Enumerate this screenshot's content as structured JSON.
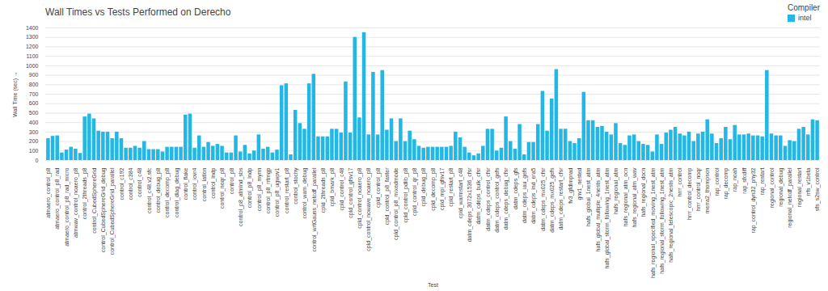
{
  "chart_data": {
    "type": "bar",
    "title": "Wall Times vs Tests Performed on Derecho",
    "x_label": "Test",
    "y_label": "Wall Time (sec)",
    "legend_title": "Compiler",
    "legend": "top-right",
    "grid": true,
    "ylim": [
      0,
      1400
    ],
    "yticks": [
      0,
      100,
      200,
      300,
      400,
      500,
      600,
      700,
      800,
      900,
      1000,
      1100,
      1200,
      1300,
      1400
    ],
    "categories": [
      "atmaero_control_p8",
      null,
      "atmaero_control_p8_rad",
      null,
      "atmaero_control_p8_rad_micro",
      null,
      "atmwav_control_noaero_p8",
      null,
      "control_2threads_p8",
      null,
      "control_CubedSphereGrid",
      null,
      "control_CubedSphereGrid_debug",
      null,
      "control_CubedSphereGrid_parallel",
      null,
      "control_c192",
      null,
      "control_c384",
      null,
      "control_c48",
      null,
      "control_c48.v2.sfc",
      null,
      "control_debug_p8",
      null,
      "control_decomp_p8",
      null,
      "control_diag_debug",
      null,
      "control_flake",
      null,
      "control_iovr4",
      null,
      "control_latlon",
      null,
      "control_lndp",
      null,
      "control_noqr_p8",
      null,
      "control_p8",
      null,
      "control_p8_atmlnd_sbs",
      null,
      "control_p8_lndp",
      null,
      "control_p8_mynn",
      null,
      "control_p8_rrtmgp",
      null,
      "control_p8_ugwpv1",
      null,
      "control_restart_p8",
      null,
      "control_stochy",
      null,
      "control_wam_debug",
      null,
      "control_wrtGauss_netcdf_parallel",
      null,
      "cpld_2threads_p8",
      null,
      "cpld_bmark_p8",
      null,
      "cpld_control_c48",
      null,
      "cpld_control_gfsv17",
      null,
      "cpld_control_noaero_p8",
      null,
      "cpld_control_nowave_noaero_p8",
      null,
      "cpld_control_p8",
      null,
      "cpld_control_p8_faster",
      null,
      "cpld_control_p8_mixedmode",
      null,
      "cpld_control_pdlib_p8",
      null,
      "cpld_control_qr_p8",
      null,
      "cpld_debug_p8",
      null,
      "cpld_decomp_p8",
      null,
      "cpld_mpi_gfsv17",
      null,
      "cpld_restart_p8",
      null,
      "cpld_warmstart_c48",
      null,
      "datm_cdeps_3072x1536_cfsr",
      null,
      "datm_cdeps_bulk_cfsr",
      null,
      "datm_cdeps_control_cfsr",
      null,
      "datm_cdeps_control_gefs",
      null,
      "datm_cdeps_debug_cfsr",
      null,
      "datm_cdeps_gfs",
      null,
      "datm_cdeps_iau_gefs",
      null,
      "datm_cdeps_lnd_era5",
      null,
      "datm_cdeps_mx025_cfsr",
      null,
      "datm_cdeps_mx025_gefs",
      null,
      "datm_cdeps_restart_cfsr",
      null,
      "fv3_gfdlmprad",
      null,
      "gnv1_nested",
      null,
      "hafs_global_1nest_atm",
      null,
      "hafs_global_multiple_4nests_atm",
      null,
      "hafs_global_storm_following_1nest_atm",
      null,
      "hafs_regional_atm",
      null,
      "hafs_regional_atm_ocn",
      null,
      "hafs_regional_atm_wav",
      null,
      "hafs_regional_docn",
      null,
      "hafs_regional_specified_moving_1nest_atm",
      null,
      "hafs_regional_storm_following_1nest_atm",
      null,
      "hafs_regional_telescopic_2nests_atm",
      null,
      "hrrr_control",
      null,
      "hrrr_control_decomp",
      null,
      "hrrr_control_noqr",
      null,
      "merra2_thompson",
      null,
      "rap_control",
      null,
      "rap_decomp",
      null,
      "rap_noah",
      null,
      "rap_sfcdiff",
      null,
      "rap_control_dyn32_phy32",
      null,
      "rap_restart",
      null,
      "regional_control",
      null,
      "regional_debug",
      null,
      "regional_netcdf_parallel",
      null,
      "regional_restart",
      null,
      "rrfs_v1beta",
      null,
      "sfs_s2sw_control"
    ],
    "series": [
      {
        "name": "intel",
        "color": "#23b7e5",
        "values": [
          230,
          255,
          260,
          80,
          110,
          140,
          120,
          75,
          460,
          490,
          440,
          310,
          300,
          300,
          230,
          300,
          230,
          130,
          130,
          150,
          130,
          200,
          115,
          115,
          115,
          90,
          140,
          140,
          140,
          140,
          480,
          490,
          130,
          260,
          140,
          190,
          150,
          170,
          150,
          80,
          80,
          260,
          90,
          160,
          70,
          100,
          270,
          120,
          140,
          80,
          110,
          790,
          810,
          60,
          530,
          390,
          330,
          810,
          910,
          250,
          250,
          250,
          330,
          330,
          290,
          830,
          290,
          1300,
          450,
          1350,
          270,
          930,
          270,
          950,
          320,
          440,
          200,
          440,
          200,
          310,
          220,
          150,
          130,
          140,
          140,
          140,
          140,
          140,
          150,
          300,
          240,
          140,
          80,
          50,
          70,
          150,
          330,
          330,
          100,
          130,
          460,
          200,
          120,
          380,
          60,
          190,
          190,
          380,
          730,
          310,
          650,
          960,
          330,
          330,
          200,
          180,
          230,
          720,
          420,
          420,
          350,
          360,
          300,
          270,
          390,
          180,
          160,
          260,
          270,
          200,
          170,
          160,
          90,
          270,
          170,
          290,
          320,
          350,
          280,
          260,
          300,
          200,
          280,
          300,
          430,
          280,
          180,
          230,
          350,
          220,
          370,
          270,
          270,
          280,
          260,
          260,
          250,
          950,
          280,
          260,
          260,
          150,
          210,
          200,
          330,
          350,
          270,
          430,
          420
        ]
      }
    ]
  }
}
